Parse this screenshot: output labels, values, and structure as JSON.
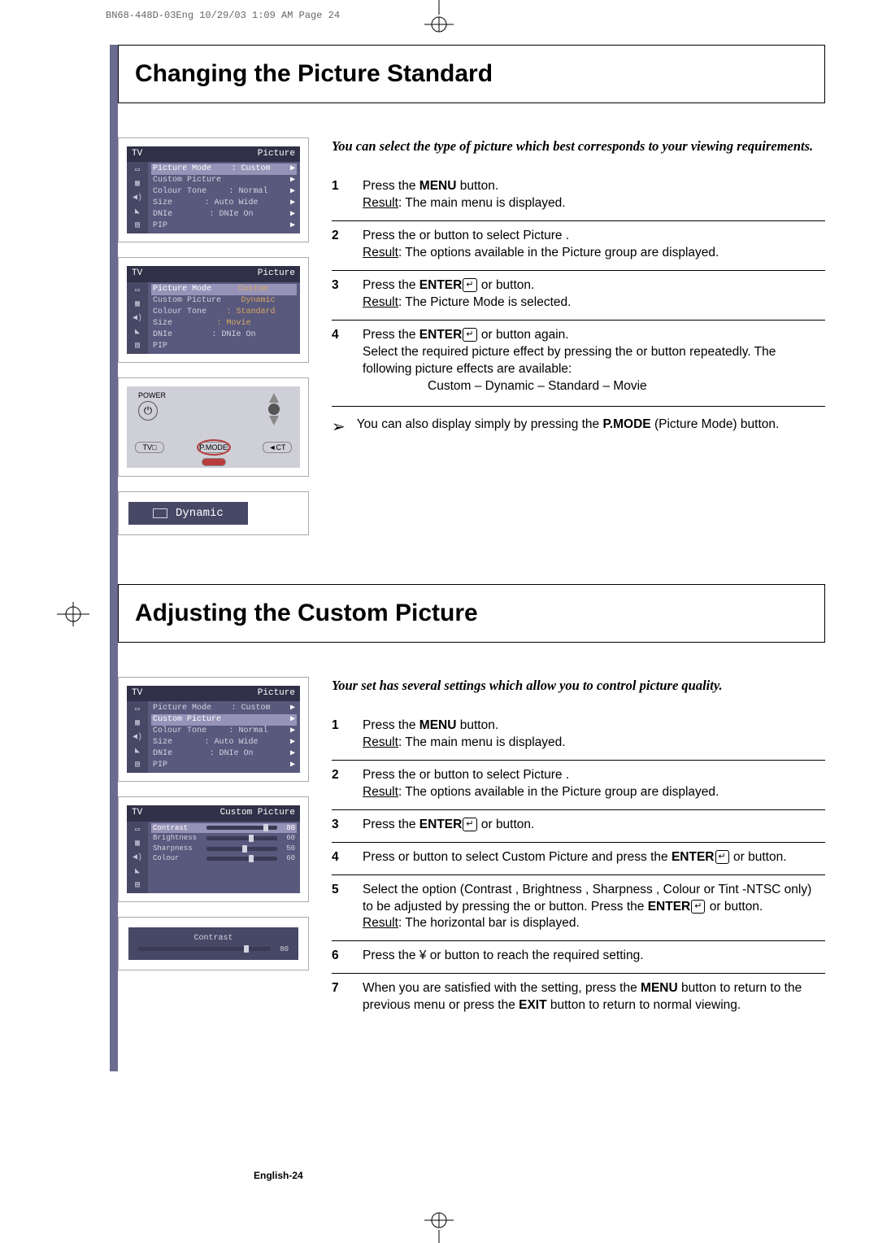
{
  "meta_header": "BN68-448D-03Eng  10/29/03 1:09 AM  Page 24",
  "page_num": "English-24",
  "section1": {
    "title": "Changing the Picture Standard",
    "intro": "You can select the type of picture which best corresponds to your viewing requirements.",
    "steps": [
      {
        "n": "1",
        "lines": [
          {
            "parts": [
              "Press the ",
              {
                "b": "MENU"
              },
              " button."
            ]
          },
          {
            "parts": [
              {
                "u": "Result"
              },
              ":        The main menu is displayed."
            ]
          }
        ]
      },
      {
        "n": "2",
        "lines": [
          {
            "parts": [
              "Press the       or       button to select ",
              "Picture",
              "     ."
            ]
          },
          {
            "parts": [
              {
                "u": "Result"
              },
              ":        The options available in the ",
              "Picture",
              "     group are displayed."
            ]
          }
        ]
      },
      {
        "n": "3",
        "lines": [
          {
            "parts": [
              "Press the ",
              {
                "b": "ENTER"
              },
              {
                "enter": true
              },
              " or       button."
            ]
          },
          {
            "parts": [
              {
                "u": "Result"
              },
              ":        The ",
              "Picture Mode",
              "     is selected."
            ]
          }
        ]
      },
      {
        "n": "4",
        "lines": [
          {
            "parts": [
              "Press the ",
              {
                "b": "ENTER"
              },
              {
                "enter": true
              },
              " or       button again."
            ]
          },
          {
            "parts": [
              "Select the required picture effect by pressing the       or       button repeatedly. The following picture effects are available:"
            ]
          },
          {
            "center": true,
            "parts": [
              "Custom  –  Dynamic  –  Standard     –  Movie"
            ]
          }
        ]
      }
    ],
    "note": "You can also display simply by pressing the",
    "note_bold": "P.MODE",
    "note_tail": " (Picture Mode) button.",
    "osd1": {
      "title_left": "TV",
      "title_right": "Picture",
      "rows": [
        {
          "label": "Picture Mode",
          "val": ": Custom",
          "hl": true,
          "arr": true
        },
        {
          "label": "Custom Picture",
          "val": "",
          "arr": true
        },
        {
          "label": "Colour Tone",
          "val": ": Normal",
          "arr": true
        },
        {
          "label": "Size",
          "val": ": Auto Wide",
          "arr": true
        },
        {
          "label": "DNIe",
          "val": ": DNIe On",
          "arr": true
        },
        {
          "label": "PIP",
          "val": "",
          "arr": true
        }
      ]
    },
    "osd2": {
      "title_left": "TV",
      "title_right": "Picture",
      "rows": [
        {
          "label": "Picture Mode",
          "val": "Custom",
          "hl": true,
          "arr": false,
          "orange": true
        },
        {
          "label": "Custom Picture",
          "val": "Dynamic",
          "orange": true
        },
        {
          "label": "Colour Tone",
          "val": ": Standard",
          "orange": true
        },
        {
          "label": "Size",
          "val": ": Movie",
          "orange": true
        },
        {
          "label": "DNIe",
          "val": ": DNIe On"
        },
        {
          "label": "PIP",
          "val": ""
        }
      ]
    },
    "remote": {
      "power": "POWER",
      "buttons": [
        "TV□",
        "P.MODE",
        "◄CT"
      ]
    },
    "dynamic_label": "Dynamic"
  },
  "section2": {
    "title": "Adjusting the Custom Picture",
    "intro": "Your set has several settings which allow you to control picture quality.",
    "steps": [
      {
        "n": "1",
        "lines": [
          {
            "parts": [
              "Press the ",
              {
                "b": "MENU"
              },
              " button."
            ]
          },
          {
            "parts": [
              {
                "u": "Result"
              },
              ":        The main menu is displayed."
            ]
          }
        ]
      },
      {
        "n": "2",
        "lines": [
          {
            "parts": [
              "Press the       or       button to select ",
              "Picture",
              "     ."
            ]
          },
          {
            "parts": [
              {
                "u": "Result"
              },
              ":        The options available in the ",
              "Picture",
              "     group are displayed."
            ]
          }
        ]
      },
      {
        "n": "3",
        "lines": [
          {
            "parts": [
              "Press the ",
              {
                "b": "ENTER"
              },
              {
                "enter": true
              },
              " or       button."
            ]
          }
        ]
      },
      {
        "n": "4",
        "lines": [
          {
            "parts": [
              "Press       or       button to select ",
              "Custom Picture",
              "     and press the ",
              {
                "b": "ENTER"
              },
              {
                "enter": true
              },
              " or       button."
            ]
          }
        ]
      },
      {
        "n": "5",
        "lines": [
          {
            "parts": [
              "Select the option (",
              "Contrast",
              "   , ",
              "Brightness",
              "     , ",
              "Sharpness",
              "  , ",
              "Colour",
              "   or ",
              "Tint",
              "  -NTSC only) to be adjusted by pressing the       or       button. Press the ",
              {
                "b": "ENTER"
              },
              {
                "enter": true
              },
              " or       button."
            ]
          },
          {
            "parts": [
              {
                "u": "Result"
              },
              ":        The horizontal bar is displayed."
            ]
          }
        ]
      },
      {
        "n": "6",
        "lines": [
          {
            "parts": [
              "Press the  ¥  or       button to reach the required setting."
            ]
          }
        ]
      },
      {
        "n": "7",
        "lines": [
          {
            "parts": [
              "When you are satisfied with the setting, press the ",
              {
                "b": "MENU"
              },
              " button to return to the previous menu or press the ",
              {
                "b": "EXIT"
              },
              " button to return to normal viewing."
            ]
          }
        ]
      }
    ],
    "osd1": {
      "title_left": "TV",
      "title_right": "Picture",
      "rows": [
        {
          "label": "Picture Mode",
          "val": ": Custom",
          "arr": true
        },
        {
          "label": "Custom Picture",
          "val": "",
          "hl": true,
          "arr": true
        },
        {
          "label": "Colour Tone",
          "val": ": Normal",
          "arr": true
        },
        {
          "label": "Size",
          "val": ": Auto Wide",
          "arr": true
        },
        {
          "label": "DNIe",
          "val": ": DNIe On",
          "arr": true
        },
        {
          "label": "PIP",
          "val": "",
          "arr": true
        }
      ]
    },
    "osd2": {
      "title_left": "TV",
      "title_right": "Custom Picture",
      "sliders": [
        {
          "label": "Contrast",
          "val": 80,
          "hl": true
        },
        {
          "label": "Brightness",
          "val": 60
        },
        {
          "label": "Sharpness",
          "val": 50
        },
        {
          "label": "Colour",
          "val": 60
        }
      ]
    },
    "contrast_bar": {
      "label": "Contrast",
      "val": 80
    }
  },
  "colors": {
    "osd_bg": "#59597e",
    "osd_header": "#303048",
    "osd_hl": "#9793b8",
    "left_bar": "#6b6b8f",
    "orange": "#d8a860"
  }
}
